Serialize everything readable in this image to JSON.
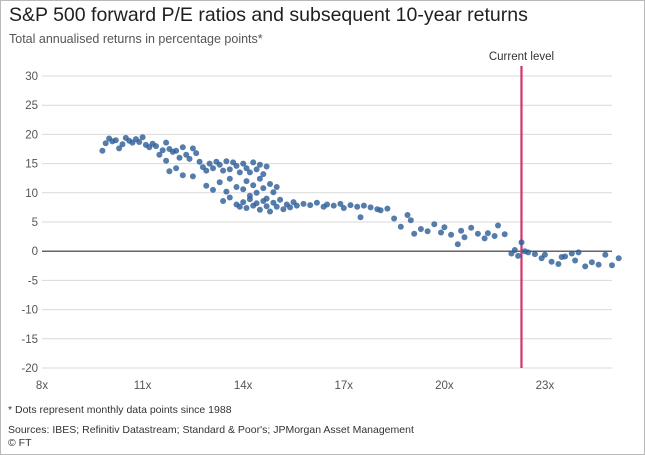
{
  "header": {
    "title": "S&P 500 forward P/E ratios and subsequent 10-year returns",
    "subtitle": "Total annualised returns in percentage points*"
  },
  "footer": {
    "footnote": "* Dots represent monthly data points since 1988",
    "sources": "Sources: IBES; Refinitiv Datastream; Standard & Poor's; JPMorgan Asset Management",
    "credit": "© FT"
  },
  "colors": {
    "dots": "#2f5f99",
    "reference_line": "#d6336c",
    "zero_line": "#333333",
    "grid": "#d9d9d9"
  },
  "chart_data": {
    "type": "scatter",
    "title": "S&P 500 forward P/E ratios and subsequent 10-year returns",
    "subtitle": "Total annualised returns in percentage points*",
    "xlabel": "",
    "ylabel": "",
    "xlim": [
      8,
      25
    ],
    "ylim": [
      -20,
      30
    ],
    "x_ticks": [
      8,
      11,
      14,
      17,
      20,
      23
    ],
    "x_tick_labels": [
      "8x",
      "11x",
      "14x",
      "17x",
      "20x",
      "23x"
    ],
    "y_ticks": [
      30,
      25,
      20,
      15,
      10,
      5,
      0,
      -5,
      -10,
      -15,
      -20
    ],
    "grid": "horizontal",
    "reference_line": {
      "x": 22.3,
      "label": "Current level"
    },
    "series": [
      {
        "points": [
          [
            9.8,
            17.2
          ],
          [
            9.9,
            18.5
          ],
          [
            10.0,
            19.3
          ],
          [
            10.1,
            18.8
          ],
          [
            10.2,
            19.0
          ],
          [
            10.3,
            17.6
          ],
          [
            10.4,
            18.3
          ],
          [
            10.5,
            19.4
          ],
          [
            10.6,
            18.9
          ],
          [
            10.7,
            18.6
          ],
          [
            10.8,
            19.2
          ],
          [
            10.9,
            18.7
          ],
          [
            11.0,
            19.5
          ],
          [
            11.1,
            18.2
          ],
          [
            11.2,
            17.8
          ],
          [
            11.3,
            18.4
          ],
          [
            11.4,
            18.0
          ],
          [
            11.5,
            16.5
          ],
          [
            11.6,
            17.3
          ],
          [
            11.7,
            18.6
          ],
          [
            11.8,
            17.5
          ],
          [
            11.9,
            17.0
          ],
          [
            12.0,
            17.2
          ],
          [
            12.1,
            16.0
          ],
          [
            12.2,
            17.8
          ],
          [
            12.3,
            16.5
          ],
          [
            12.4,
            15.8
          ],
          [
            12.5,
            17.6
          ],
          [
            12.6,
            16.8
          ],
          [
            12.7,
            15.3
          ],
          [
            12.8,
            14.4
          ],
          [
            12.9,
            13.8
          ],
          [
            13.0,
            15.0
          ],
          [
            13.1,
            14.2
          ],
          [
            13.2,
            15.3
          ],
          [
            13.3,
            14.8
          ],
          [
            13.4,
            13.8
          ],
          [
            13.5,
            15.4
          ],
          [
            13.6,
            14.0
          ],
          [
            13.7,
            15.2
          ],
          [
            13.8,
            14.6
          ],
          [
            13.9,
            13.5
          ],
          [
            14.0,
            15.0
          ],
          [
            14.1,
            14.2
          ],
          [
            14.2,
            13.5
          ],
          [
            14.3,
            15.2
          ],
          [
            14.4,
            14.0
          ],
          [
            14.5,
            14.8
          ],
          [
            14.6,
            13.2
          ],
          [
            14.7,
            14.5
          ],
          [
            11.7,
            15.5
          ],
          [
            11.8,
            13.7
          ],
          [
            12.0,
            14.2
          ],
          [
            12.2,
            13.0
          ],
          [
            12.5,
            12.8
          ],
          [
            12.9,
            11.2
          ],
          [
            13.1,
            10.5
          ],
          [
            13.3,
            11.8
          ],
          [
            13.5,
            10.2
          ],
          [
            13.6,
            12.4
          ],
          [
            13.8,
            11.0
          ],
          [
            14.0,
            10.6
          ],
          [
            14.1,
            12.0
          ],
          [
            14.2,
            9.5
          ],
          [
            14.3,
            11.3
          ],
          [
            14.4,
            10.0
          ],
          [
            14.5,
            12.4
          ],
          [
            14.6,
            10.8
          ],
          [
            14.7,
            9.0
          ],
          [
            14.8,
            11.5
          ],
          [
            14.9,
            10.1
          ],
          [
            15.0,
            11.0
          ],
          [
            13.4,
            8.6
          ],
          [
            13.6,
            9.2
          ],
          [
            13.8,
            8.0
          ],
          [
            13.9,
            7.6
          ],
          [
            14.0,
            8.4
          ],
          [
            14.1,
            7.4
          ],
          [
            14.2,
            8.9
          ],
          [
            14.3,
            7.8
          ],
          [
            14.4,
            8.2
          ],
          [
            14.5,
            7.1
          ],
          [
            14.6,
            8.6
          ],
          [
            14.7,
            7.7
          ],
          [
            14.8,
            6.8
          ],
          [
            14.9,
            8.3
          ],
          [
            15.0,
            7.6
          ],
          [
            15.1,
            8.8
          ],
          [
            15.2,
            7.2
          ],
          [
            15.3,
            8.0
          ],
          [
            15.4,
            7.5
          ],
          [
            15.5,
            8.4
          ],
          [
            15.6,
            7.8
          ],
          [
            15.8,
            8.1
          ],
          [
            16.0,
            7.9
          ],
          [
            16.2,
            8.3
          ],
          [
            16.4,
            7.6
          ],
          [
            16.5,
            8.0
          ],
          [
            16.7,
            7.8
          ],
          [
            16.9,
            8.1
          ],
          [
            17.0,
            7.4
          ],
          [
            17.2,
            7.9
          ],
          [
            17.4,
            7.6
          ],
          [
            17.5,
            5.8
          ],
          [
            17.6,
            7.8
          ],
          [
            17.8,
            7.5
          ],
          [
            18.0,
            7.2
          ],
          [
            18.1,
            7.0
          ],
          [
            18.3,
            7.3
          ],
          [
            18.5,
            5.6
          ],
          [
            18.7,
            4.2
          ],
          [
            18.9,
            6.2
          ],
          [
            19.0,
            5.3
          ],
          [
            19.1,
            3.0
          ],
          [
            19.3,
            3.8
          ],
          [
            19.5,
            3.4
          ],
          [
            19.7,
            4.6
          ],
          [
            19.9,
            3.2
          ],
          [
            20.0,
            4.1
          ],
          [
            20.2,
            2.8
          ],
          [
            20.4,
            1.2
          ],
          [
            20.5,
            3.5
          ],
          [
            20.6,
            2.4
          ],
          [
            20.8,
            4.0
          ],
          [
            21.0,
            3.0
          ],
          [
            21.2,
            2.2
          ],
          [
            21.3,
            3.1
          ],
          [
            21.5,
            2.6
          ],
          [
            21.6,
            4.4
          ],
          [
            21.8,
            2.9
          ],
          [
            22.0,
            -0.4
          ],
          [
            22.1,
            0.2
          ],
          [
            22.2,
            -0.8
          ],
          [
            22.3,
            1.5
          ],
          [
            22.4,
            0.0
          ],
          [
            22.5,
            -0.2
          ],
          [
            22.7,
            -0.5
          ],
          [
            22.9,
            -1.2
          ],
          [
            23.0,
            -0.6
          ],
          [
            23.2,
            -1.8
          ],
          [
            23.4,
            -2.2
          ],
          [
            23.5,
            -1.0
          ],
          [
            23.6,
            -0.9
          ],
          [
            23.8,
            -0.4
          ],
          [
            23.9,
            -1.6
          ],
          [
            24.0,
            -0.2
          ],
          [
            24.2,
            -2.6
          ],
          [
            24.4,
            -1.9
          ],
          [
            24.6,
            -2.3
          ],
          [
            24.8,
            -0.6
          ],
          [
            25.0,
            -2.4
          ],
          [
            25.2,
            -1.2
          ]
        ]
      }
    ]
  }
}
